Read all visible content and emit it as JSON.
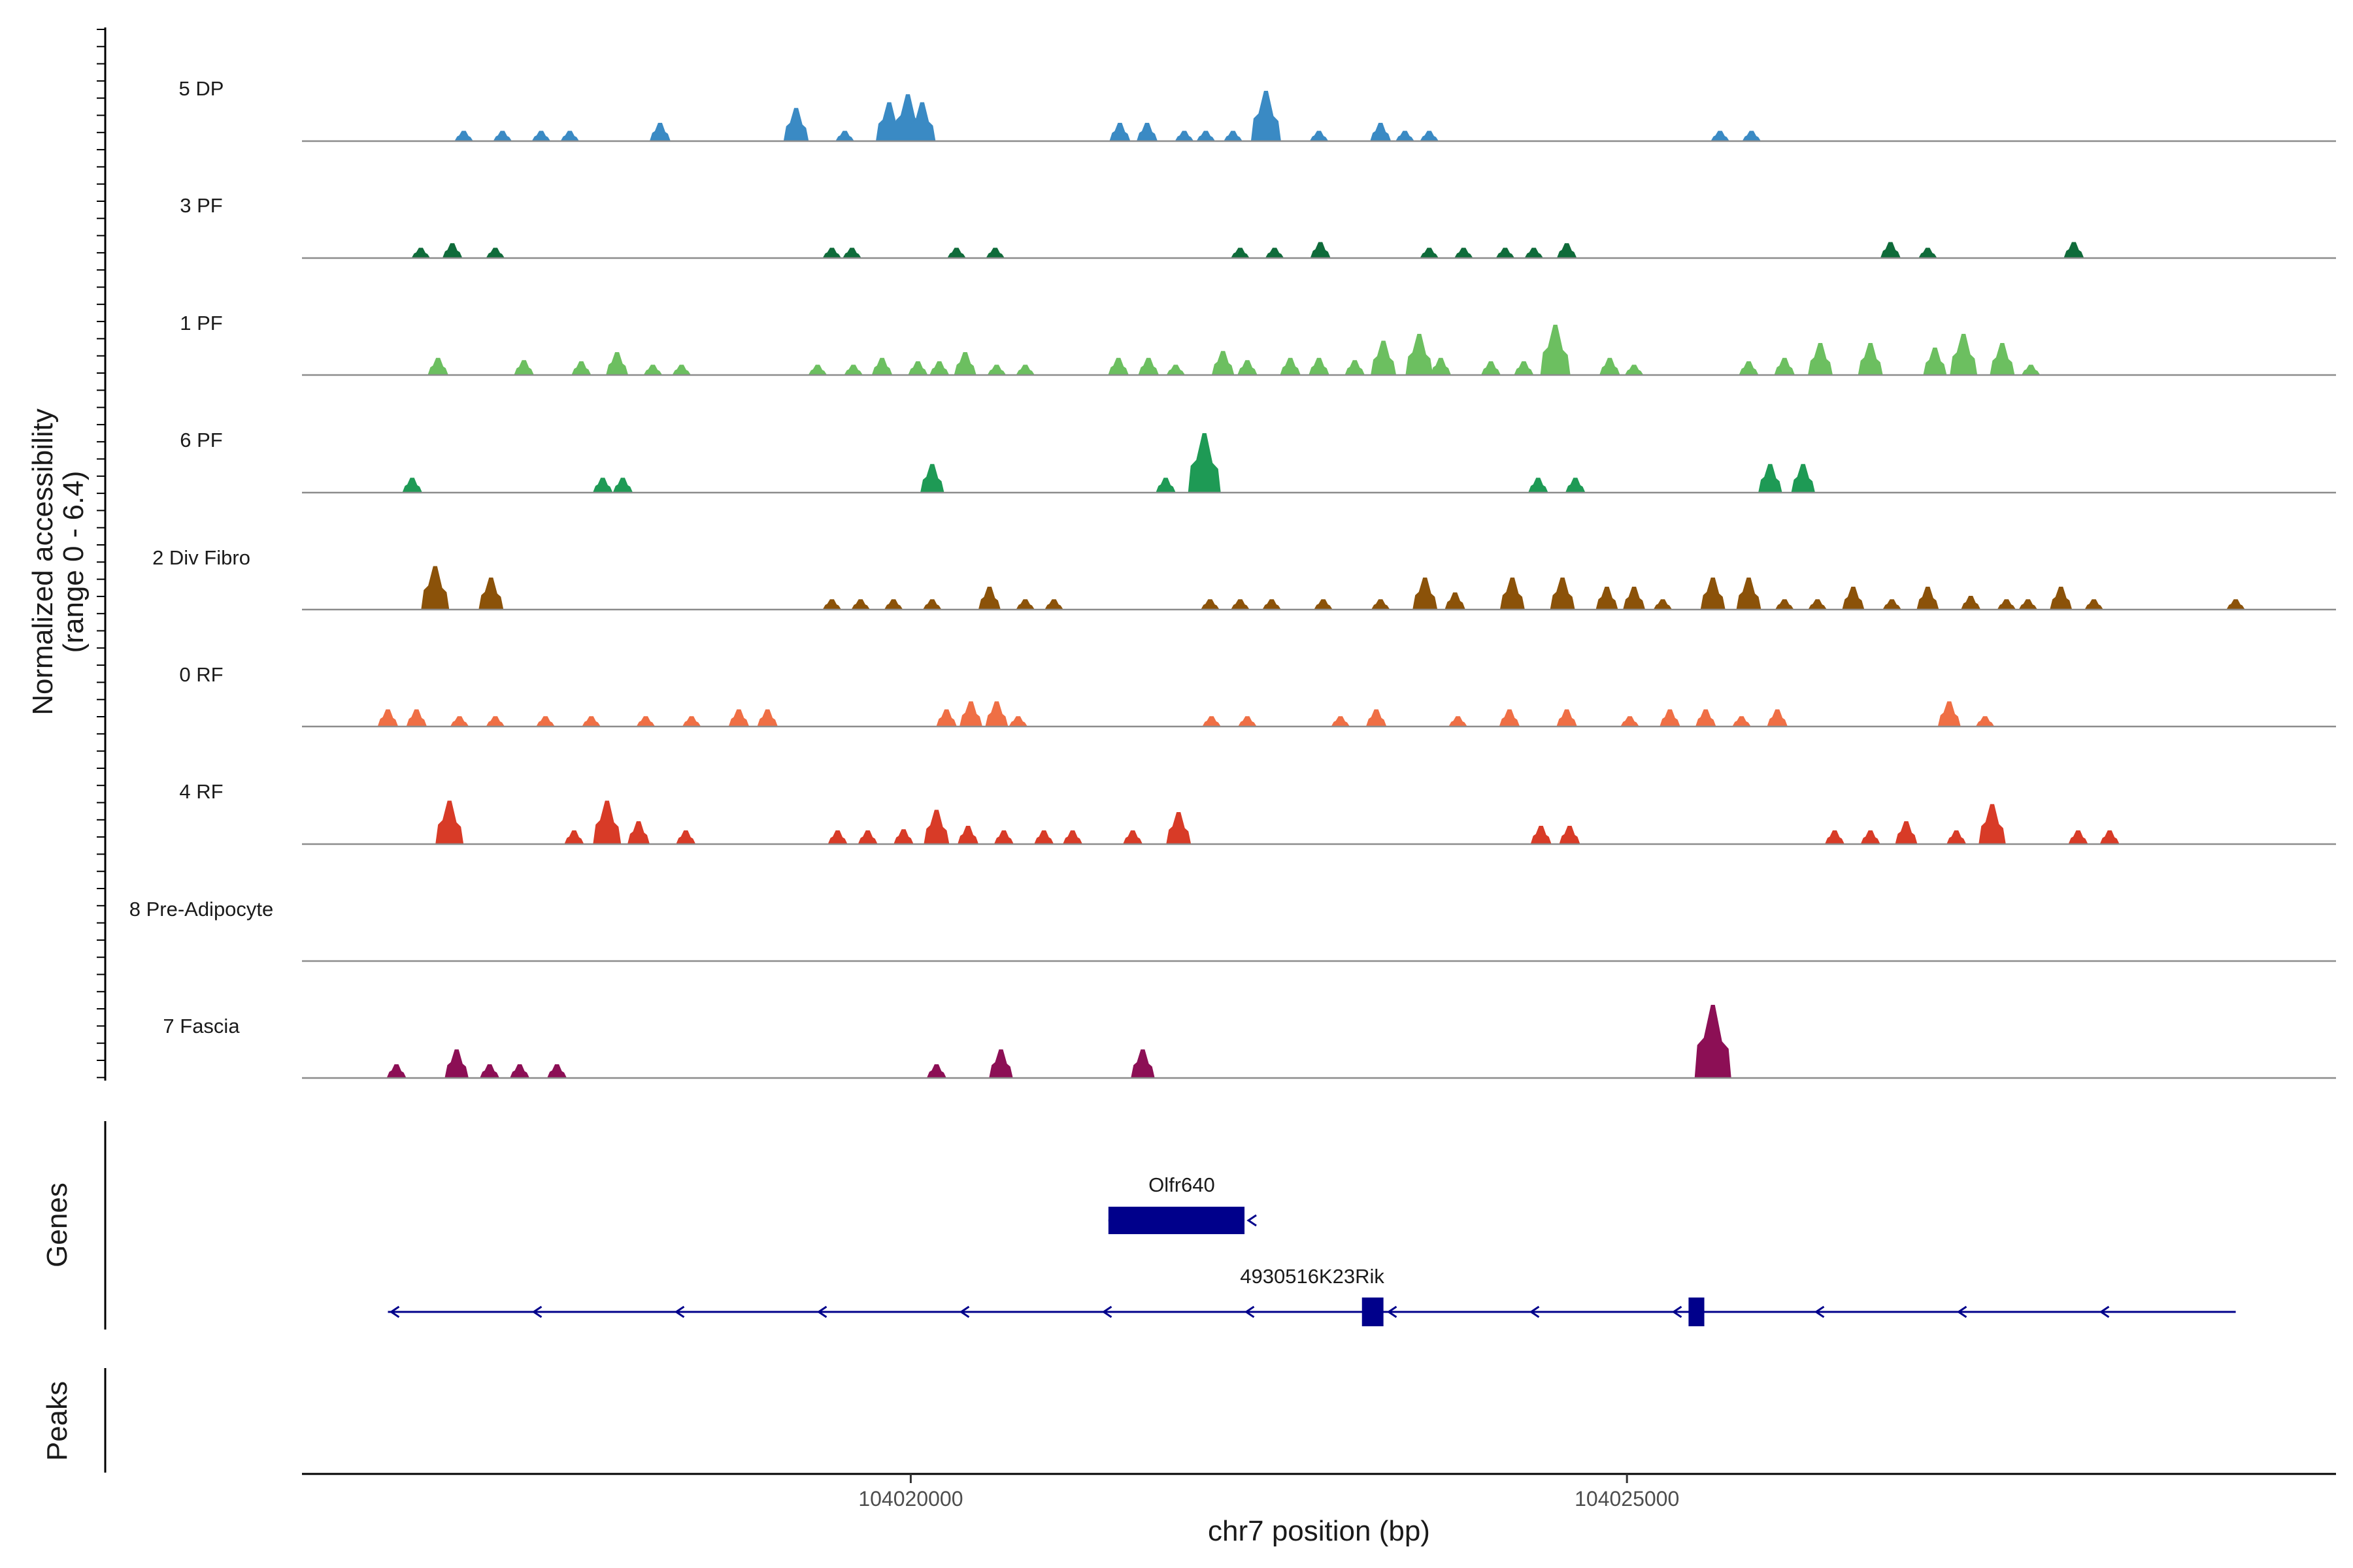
{
  "chart_data": {
    "type": "area",
    "title": "",
    "ylabel": "Normalized accessibility\n(range 0 - 6.4)",
    "xlabel": "chr7 position (bp)",
    "xlim": [
      104015750,
      104029950
    ],
    "ylim": [
      0,
      6.4
    ],
    "xticks": [
      104020000,
      104025000
    ],
    "xtick_labels": [
      "104020000",
      "104025000"
    ],
    "tracks": [
      {
        "name": "5 DP",
        "color": "#3a8ac4",
        "peaks": [
          [
            104016880,
            0.9
          ],
          [
            104017150,
            0.9
          ],
          [
            104017420,
            0.9
          ],
          [
            104017620,
            0.9
          ],
          [
            104018250,
            1.6
          ],
          [
            104019200,
            2.9
          ],
          [
            104019540,
            0.9
          ],
          [
            104019850,
            3.4
          ],
          [
            104019980,
            4.1
          ],
          [
            104020080,
            3.4
          ],
          [
            104021460,
            1.6
          ],
          [
            104021650,
            1.6
          ],
          [
            104021910,
            0.9
          ],
          [
            104022060,
            0.9
          ],
          [
            104022250,
            0.9
          ],
          [
            104022480,
            4.4
          ],
          [
            104022850,
            0.9
          ],
          [
            104023280,
            1.6
          ],
          [
            104023450,
            0.9
          ],
          [
            104023620,
            0.9
          ],
          [
            104025650,
            0.9
          ],
          [
            104025870,
            0.9
          ]
        ]
      },
      {
        "name": "3 PF",
        "color": "#0f6b3a",
        "peaks": [
          [
            104016580,
            0.9
          ],
          [
            104016800,
            1.3
          ],
          [
            104017100,
            0.9
          ],
          [
            104019450,
            0.9
          ],
          [
            104019590,
            0.9
          ],
          [
            104020320,
            0.9
          ],
          [
            104020590,
            0.9
          ],
          [
            104022300,
            0.9
          ],
          [
            104022540,
            0.9
          ],
          [
            104022860,
            1.4
          ],
          [
            104023620,
            0.9
          ],
          [
            104023860,
            0.9
          ],
          [
            104024150,
            0.9
          ],
          [
            104024350,
            0.9
          ],
          [
            104024580,
            1.3
          ],
          [
            104026840,
            1.4
          ],
          [
            104027100,
            0.9
          ],
          [
            104028120,
            1.4
          ]
        ]
      },
      {
        "name": "1 PF",
        "color": "#6cbf60",
        "peaks": [
          [
            104016700,
            1.5
          ],
          [
            104017300,
            1.3
          ],
          [
            104017700,
            1.2
          ],
          [
            104017950,
            2.0
          ],
          [
            104018200,
            0.9
          ],
          [
            104018400,
            0.9
          ],
          [
            104019350,
            0.9
          ],
          [
            104019600,
            0.9
          ],
          [
            104019800,
            1.5
          ],
          [
            104020050,
            1.2
          ],
          [
            104020200,
            1.2
          ],
          [
            104020380,
            2.0
          ],
          [
            104020600,
            0.9
          ],
          [
            104020800,
            0.9
          ],
          [
            104021450,
            1.5
          ],
          [
            104021660,
            1.5
          ],
          [
            104021850,
            0.9
          ],
          [
            104022180,
            2.1
          ],
          [
            104022350,
            1.3
          ],
          [
            104022650,
            1.5
          ],
          [
            104022850,
            1.5
          ],
          [
            104023100,
            1.3
          ],
          [
            104023300,
            3.0
          ],
          [
            104023550,
            3.6
          ],
          [
            104023700,
            1.5
          ],
          [
            104024050,
            1.2
          ],
          [
            104024280,
            1.2
          ],
          [
            104024500,
            4.4
          ],
          [
            104024880,
            1.5
          ],
          [
            104025050,
            0.9
          ],
          [
            104025850,
            1.2
          ],
          [
            104026100,
            1.5
          ],
          [
            104026350,
            2.8
          ],
          [
            104026700,
            2.8
          ],
          [
            104027150,
            2.4
          ],
          [
            104027350,
            3.6
          ],
          [
            104027620,
            2.8
          ],
          [
            104027820,
            0.9
          ]
        ]
      },
      {
        "name": "6 PF",
        "color": "#1e9a55",
        "peaks": [
          [
            104016520,
            1.3
          ],
          [
            104017850,
            1.3
          ],
          [
            104017990,
            1.3
          ],
          [
            104020150,
            2.5
          ],
          [
            104021780,
            1.3
          ],
          [
            104022050,
            5.2
          ],
          [
            104024380,
            1.3
          ],
          [
            104024640,
            1.3
          ],
          [
            104026000,
            2.5
          ],
          [
            104026230,
            2.5
          ]
        ]
      },
      {
        "name": "2 Div Fibro",
        "color": "#8b5209",
        "peaks": [
          [
            104016680,
            3.8
          ],
          [
            104017070,
            2.8
          ],
          [
            104019450,
            0.9
          ],
          [
            104019650,
            0.9
          ],
          [
            104019880,
            0.9
          ],
          [
            104020150,
            0.9
          ],
          [
            104020550,
            2.0
          ],
          [
            104020800,
            0.9
          ],
          [
            104021000,
            0.9
          ],
          [
            104022090,
            0.9
          ],
          [
            104022300,
            0.9
          ],
          [
            104022520,
            0.9
          ],
          [
            104022880,
            0.9
          ],
          [
            104023280,
            0.9
          ],
          [
            104023590,
            2.8
          ],
          [
            104023800,
            1.5
          ],
          [
            104024200,
            2.8
          ],
          [
            104024550,
            2.8
          ],
          [
            104024860,
            2.0
          ],
          [
            104025050,
            2.0
          ],
          [
            104025250,
            0.9
          ],
          [
            104025600,
            2.8
          ],
          [
            104025850,
            2.8
          ],
          [
            104026100,
            0.9
          ],
          [
            104026330,
            0.9
          ],
          [
            104026580,
            2.0
          ],
          [
            104026850,
            0.9
          ],
          [
            104027100,
            2.0
          ],
          [
            104027400,
            1.2
          ],
          [
            104027650,
            0.9
          ],
          [
            104027800,
            0.9
          ],
          [
            104028030,
            2.0
          ],
          [
            104028260,
            0.9
          ],
          [
            104029250,
            0.9
          ]
        ]
      },
      {
        "name": "0 RF",
        "color": "#ef6f45",
        "peaks": [
          [
            104016350,
            1.5
          ],
          [
            104016550,
            1.5
          ],
          [
            104016850,
            0.9
          ],
          [
            104017100,
            0.9
          ],
          [
            104017450,
            0.9
          ],
          [
            104017770,
            0.9
          ],
          [
            104018150,
            0.9
          ],
          [
            104018470,
            0.9
          ],
          [
            104018800,
            1.5
          ],
          [
            104019000,
            1.5
          ],
          [
            104020250,
            1.5
          ],
          [
            104020420,
            2.2
          ],
          [
            104020600,
            2.2
          ],
          [
            104020750,
            0.9
          ],
          [
            104022100,
            0.9
          ],
          [
            104022350,
            0.9
          ],
          [
            104023000,
            0.9
          ],
          [
            104023250,
            1.5
          ],
          [
            104023820,
            0.9
          ],
          [
            104024180,
            1.5
          ],
          [
            104024580,
            1.5
          ],
          [
            104025020,
            0.9
          ],
          [
            104025300,
            1.5
          ],
          [
            104025550,
            1.5
          ],
          [
            104025800,
            0.9
          ],
          [
            104026050,
            1.5
          ],
          [
            104027250,
            2.2
          ],
          [
            104027500,
            0.9
          ]
        ]
      },
      {
        "name": "4 RF",
        "color": "#d83b27",
        "peaks": [
          [
            104016780,
            3.8
          ],
          [
            104017650,
            1.2
          ],
          [
            104017880,
            3.8
          ],
          [
            104018100,
            2.0
          ],
          [
            104018430,
            1.2
          ],
          [
            104019490,
            1.2
          ],
          [
            104019700,
            1.2
          ],
          [
            104019950,
            1.3
          ],
          [
            104020180,
            3.0
          ],
          [
            104020400,
            1.6
          ],
          [
            104020650,
            1.2
          ],
          [
            104020930,
            1.2
          ],
          [
            104021130,
            1.2
          ],
          [
            104021550,
            1.2
          ],
          [
            104021870,
            2.8
          ],
          [
            104024400,
            1.6
          ],
          [
            104024600,
            1.6
          ],
          [
            104026450,
            1.2
          ],
          [
            104026700,
            1.2
          ],
          [
            104026950,
            2.0
          ],
          [
            104027300,
            1.2
          ],
          [
            104027550,
            3.5
          ],
          [
            104028150,
            1.2
          ],
          [
            104028370,
            1.2
          ]
        ]
      },
      {
        "name": "8 Pre-Adipocyte",
        "color": "#3a8ac4",
        "peaks": []
      },
      {
        "name": "7 Fascia",
        "color": "#8c0f55",
        "peaks": [
          [
            104016410,
            1.2
          ],
          [
            104016830,
            2.5
          ],
          [
            104017060,
            1.2
          ],
          [
            104017270,
            1.2
          ],
          [
            104017530,
            1.2
          ],
          [
            104020180,
            1.2
          ],
          [
            104020630,
            2.5
          ],
          [
            104021620,
            2.5
          ],
          [
            104025600,
            6.4
          ]
        ]
      }
    ],
    "genes": [
      {
        "name": "Olfr640",
        "start": 104021380,
        "end": 104022330,
        "strand": "-",
        "exons": [
          [
            104021380,
            104022330
          ]
        ]
      },
      {
        "name": "4930516K23Rik",
        "start": 104016350,
        "end": 104029250,
        "strand": "-",
        "exons": [
          [
            104023150,
            104023300
          ],
          [
            104025430,
            104025540
          ]
        ]
      }
    ],
    "panels": [
      "Genes",
      "Peaks"
    ]
  }
}
